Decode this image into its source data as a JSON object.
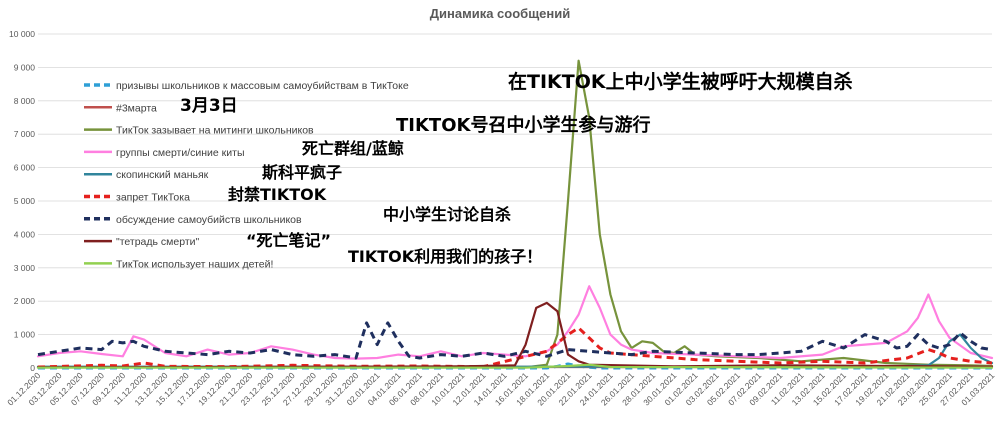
{
  "chart_data": {
    "type": "line",
    "title": "Динамика сообщений",
    "xlabel": "",
    "ylabel": "",
    "ylim": [
      0,
      10000
    ],
    "y_ticks": [
      "0",
      "1 000",
      "2 000",
      "3 000",
      "4 000",
      "5 000",
      "6 000",
      "7 000",
      "8 000",
      "9 000",
      "10 000"
    ],
    "x_ticks": [
      "01.12.2020",
      "03.12.2020",
      "05.12.2020",
      "07.12.2020",
      "09.12.2020",
      "11.12.2020",
      "13.12.2020",
      "15.12.2020",
      "17.12.2020",
      "19.12.2020",
      "21.12.2020",
      "23.12.2020",
      "25.12.2020",
      "27.12.2020",
      "29.12.2020",
      "31.12.2020",
      "02.01.2021",
      "04.01.2021",
      "06.01.2021",
      "08.01.2021",
      "10.01.2021",
      "12.01.2021",
      "14.01.2021",
      "16.01.2021",
      "18.01.2021",
      "20.01.2021",
      "22.01.2021",
      "24.01.2021",
      "26.01.2021",
      "28.01.2021",
      "30.01.2021",
      "01.02.2021",
      "03.02.2021",
      "05.02.2021",
      "07.02.2021",
      "09.02.2021",
      "11.02.2021",
      "13.02.2021",
      "15.02.2021",
      "17.02.2021",
      "19.02.2021",
      "21.02.2021",
      "23.02.2021",
      "25.02.2021",
      "27.02.2021",
      "01.03.2021"
    ],
    "grid": true,
    "legend_position": "top-left",
    "series": [
      {
        "name": "призывы школьников к массовым самоубийствам в ТикТоке",
        "annotation": "在TIKTOK上中小学生被呼吁大规模自杀",
        "color": "#2e9fd6",
        "dash": "dash",
        "points": [
          [
            0,
            0
          ],
          [
            48,
            0
          ],
          [
            49,
            50
          ],
          [
            50,
            120
          ],
          [
            51,
            60
          ],
          [
            52,
            20
          ],
          [
            53,
            0
          ],
          [
            90,
            0
          ]
        ]
      },
      {
        "name": "#3марта",
        "annotation": "3月3日",
        "color": "#c0504d",
        "dash": "solid",
        "points": [
          [
            0,
            30
          ],
          [
            30,
            40
          ],
          [
            58,
            30
          ],
          [
            76,
            50
          ],
          [
            84,
            60
          ],
          [
            90,
            30
          ]
        ]
      },
      {
        "name": "ТикТок зазывает на митинги школьников",
        "annotation": "TIKTOK号召中小学生参与游行",
        "color": "#77933c",
        "dash": "solid",
        "points": [
          [
            0,
            20
          ],
          [
            46,
            20
          ],
          [
            48,
            100
          ],
          [
            49,
            1000
          ],
          [
            50,
            5000
          ],
          [
            51,
            9200
          ],
          [
            52,
            7500
          ],
          [
            53,
            4000
          ],
          [
            54,
            2200
          ],
          [
            55,
            1100
          ],
          [
            56,
            600
          ],
          [
            57,
            800
          ],
          [
            58,
            750
          ],
          [
            59,
            500
          ],
          [
            60,
            450
          ],
          [
            61,
            650
          ],
          [
            62,
            400
          ],
          [
            64,
            350
          ],
          [
            68,
            300
          ],
          [
            72,
            200
          ],
          [
            76,
            300
          ],
          [
            80,
            150
          ],
          [
            84,
            100
          ],
          [
            88,
            80
          ],
          [
            90,
            60
          ]
        ]
      },
      {
        "name": "группы смерти/синие киты",
        "annotation": "死亡群组/蓝鲸",
        "color": "#ff7fe0",
        "dash": "solid",
        "points": [
          [
            0,
            350
          ],
          [
            2,
            450
          ],
          [
            4,
            500
          ],
          [
            6,
            420
          ],
          [
            8,
            350
          ],
          [
            9,
            950
          ],
          [
            10,
            850
          ],
          [
            12,
            450
          ],
          [
            14,
            350
          ],
          [
            16,
            550
          ],
          [
            18,
            400
          ],
          [
            20,
            450
          ],
          [
            22,
            650
          ],
          [
            24,
            550
          ],
          [
            26,
            400
          ],
          [
            28,
            300
          ],
          [
            30,
            280
          ],
          [
            32,
            300
          ],
          [
            34,
            400
          ],
          [
            36,
            350
          ],
          [
            38,
            500
          ],
          [
            40,
            350
          ],
          [
            42,
            450
          ],
          [
            44,
            400
          ],
          [
            46,
            350
          ],
          [
            48,
            500
          ],
          [
            49,
            700
          ],
          [
            50,
            1100
          ],
          [
            51,
            1600
          ],
          [
            52,
            2450
          ],
          [
            53,
            1800
          ],
          [
            54,
            1000
          ],
          [
            55,
            700
          ],
          [
            56,
            550
          ],
          [
            58,
            450
          ],
          [
            62,
            400
          ],
          [
            66,
            350
          ],
          [
            70,
            300
          ],
          [
            74,
            400
          ],
          [
            76,
            650
          ],
          [
            78,
            700
          ],
          [
            80,
            750
          ],
          [
            82,
            1100
          ],
          [
            83,
            1500
          ],
          [
            84,
            2200
          ],
          [
            85,
            1400
          ],
          [
            86,
            900
          ],
          [
            88,
            450
          ],
          [
            90,
            300
          ]
        ]
      },
      {
        "name": "скопинский маньяк",
        "annotation": "斯科平疯子",
        "color": "#31859c",
        "dash": "solid",
        "points": [
          [
            0,
            40
          ],
          [
            80,
            40
          ],
          [
            82,
            60
          ],
          [
            84,
            80
          ],
          [
            85,
            300
          ],
          [
            86,
            800
          ],
          [
            87,
            1000
          ],
          [
            88,
            600
          ],
          [
            89,
            300
          ],
          [
            90,
            150
          ]
        ]
      },
      {
        "name": "запрет ТикТока",
        "annotation": "封禁TIKTOK",
        "color": "#e5201e",
        "dash": "dash",
        "points": [
          [
            0,
            30
          ],
          [
            6,
            80
          ],
          [
            8,
            60
          ],
          [
            10,
            150
          ],
          [
            12,
            50
          ],
          [
            18,
            40
          ],
          [
            24,
            80
          ],
          [
            30,
            50
          ],
          [
            36,
            60
          ],
          [
            42,
            40
          ],
          [
            48,
            500
          ],
          [
            50,
            1000
          ],
          [
            51,
            1200
          ],
          [
            52,
            900
          ],
          [
            53,
            600
          ],
          [
            54,
            450
          ],
          [
            58,
            350
          ],
          [
            62,
            250
          ],
          [
            66,
            200
          ],
          [
            70,
            150
          ],
          [
            74,
            200
          ],
          [
            78,
            150
          ],
          [
            82,
            300
          ],
          [
            84,
            550
          ],
          [
            85,
            450
          ],
          [
            86,
            300
          ],
          [
            88,
            200
          ],
          [
            90,
            150
          ]
        ]
      },
      {
        "name": "обсуждение самоубийств школьников",
        "annotation": "中小学生讨论自杀",
        "color": "#1f2f5e",
        "dash": "dash",
        "points": [
          [
            0,
            400
          ],
          [
            2,
            500
          ],
          [
            4,
            600
          ],
          [
            6,
            550
          ],
          [
            7,
            800
          ],
          [
            8,
            750
          ],
          [
            9,
            800
          ],
          [
            10,
            650
          ],
          [
            12,
            500
          ],
          [
            14,
            450
          ],
          [
            16,
            400
          ],
          [
            18,
            500
          ],
          [
            20,
            450
          ],
          [
            22,
            550
          ],
          [
            24,
            400
          ],
          [
            26,
            350
          ],
          [
            28,
            400
          ],
          [
            30,
            300
          ],
          [
            31,
            1350
          ],
          [
            32,
            700
          ],
          [
            33,
            1350
          ],
          [
            34,
            800
          ],
          [
            35,
            350
          ],
          [
            36,
            300
          ],
          [
            38,
            400
          ],
          [
            40,
            350
          ],
          [
            42,
            450
          ],
          [
            44,
            350
          ],
          [
            46,
            500
          ],
          [
            48,
            350
          ],
          [
            50,
            550
          ],
          [
            52,
            500
          ],
          [
            54,
            450
          ],
          [
            56,
            400
          ],
          [
            58,
            500
          ],
          [
            62,
            450
          ],
          [
            66,
            400
          ],
          [
            68,
            400
          ],
          [
            70,
            450
          ],
          [
            72,
            500
          ],
          [
            74,
            800
          ],
          [
            76,
            600
          ],
          [
            78,
            1000
          ],
          [
            80,
            800
          ],
          [
            81,
            600
          ],
          [
            82,
            650
          ],
          [
            83,
            1000
          ],
          [
            84,
            700
          ],
          [
            85,
            600
          ],
          [
            86,
            700
          ],
          [
            87,
            1050
          ],
          [
            88,
            800
          ],
          [
            89,
            600
          ],
          [
            90,
            550
          ]
        ]
      },
      {
        "name": "\"тетрадь смерти\"",
        "annotation": "“死亡笔记”",
        "color": "#7f1f1f",
        "dash": "solid",
        "points": [
          [
            0,
            20
          ],
          [
            20,
            30
          ],
          [
            40,
            50
          ],
          [
            45,
            80
          ],
          [
            46,
            700
          ],
          [
            47,
            1800
          ],
          [
            48,
            1950
          ],
          [
            49,
            1700
          ],
          [
            50,
            400
          ],
          [
            51,
            200
          ],
          [
            52,
            100
          ],
          [
            60,
            50
          ],
          [
            70,
            80
          ],
          [
            80,
            60
          ],
          [
            90,
            40
          ]
        ]
      },
      {
        "name": "ТикТок использует наших детей!",
        "annotation": "TIKTOK利用我们的孩子！",
        "color": "#92d050",
        "dash": "solid",
        "points": [
          [
            0,
            10
          ],
          [
            46,
            10
          ],
          [
            50,
            60
          ],
          [
            52,
            100
          ],
          [
            54,
            30
          ],
          [
            90,
            10
          ]
        ]
      }
    ]
  }
}
